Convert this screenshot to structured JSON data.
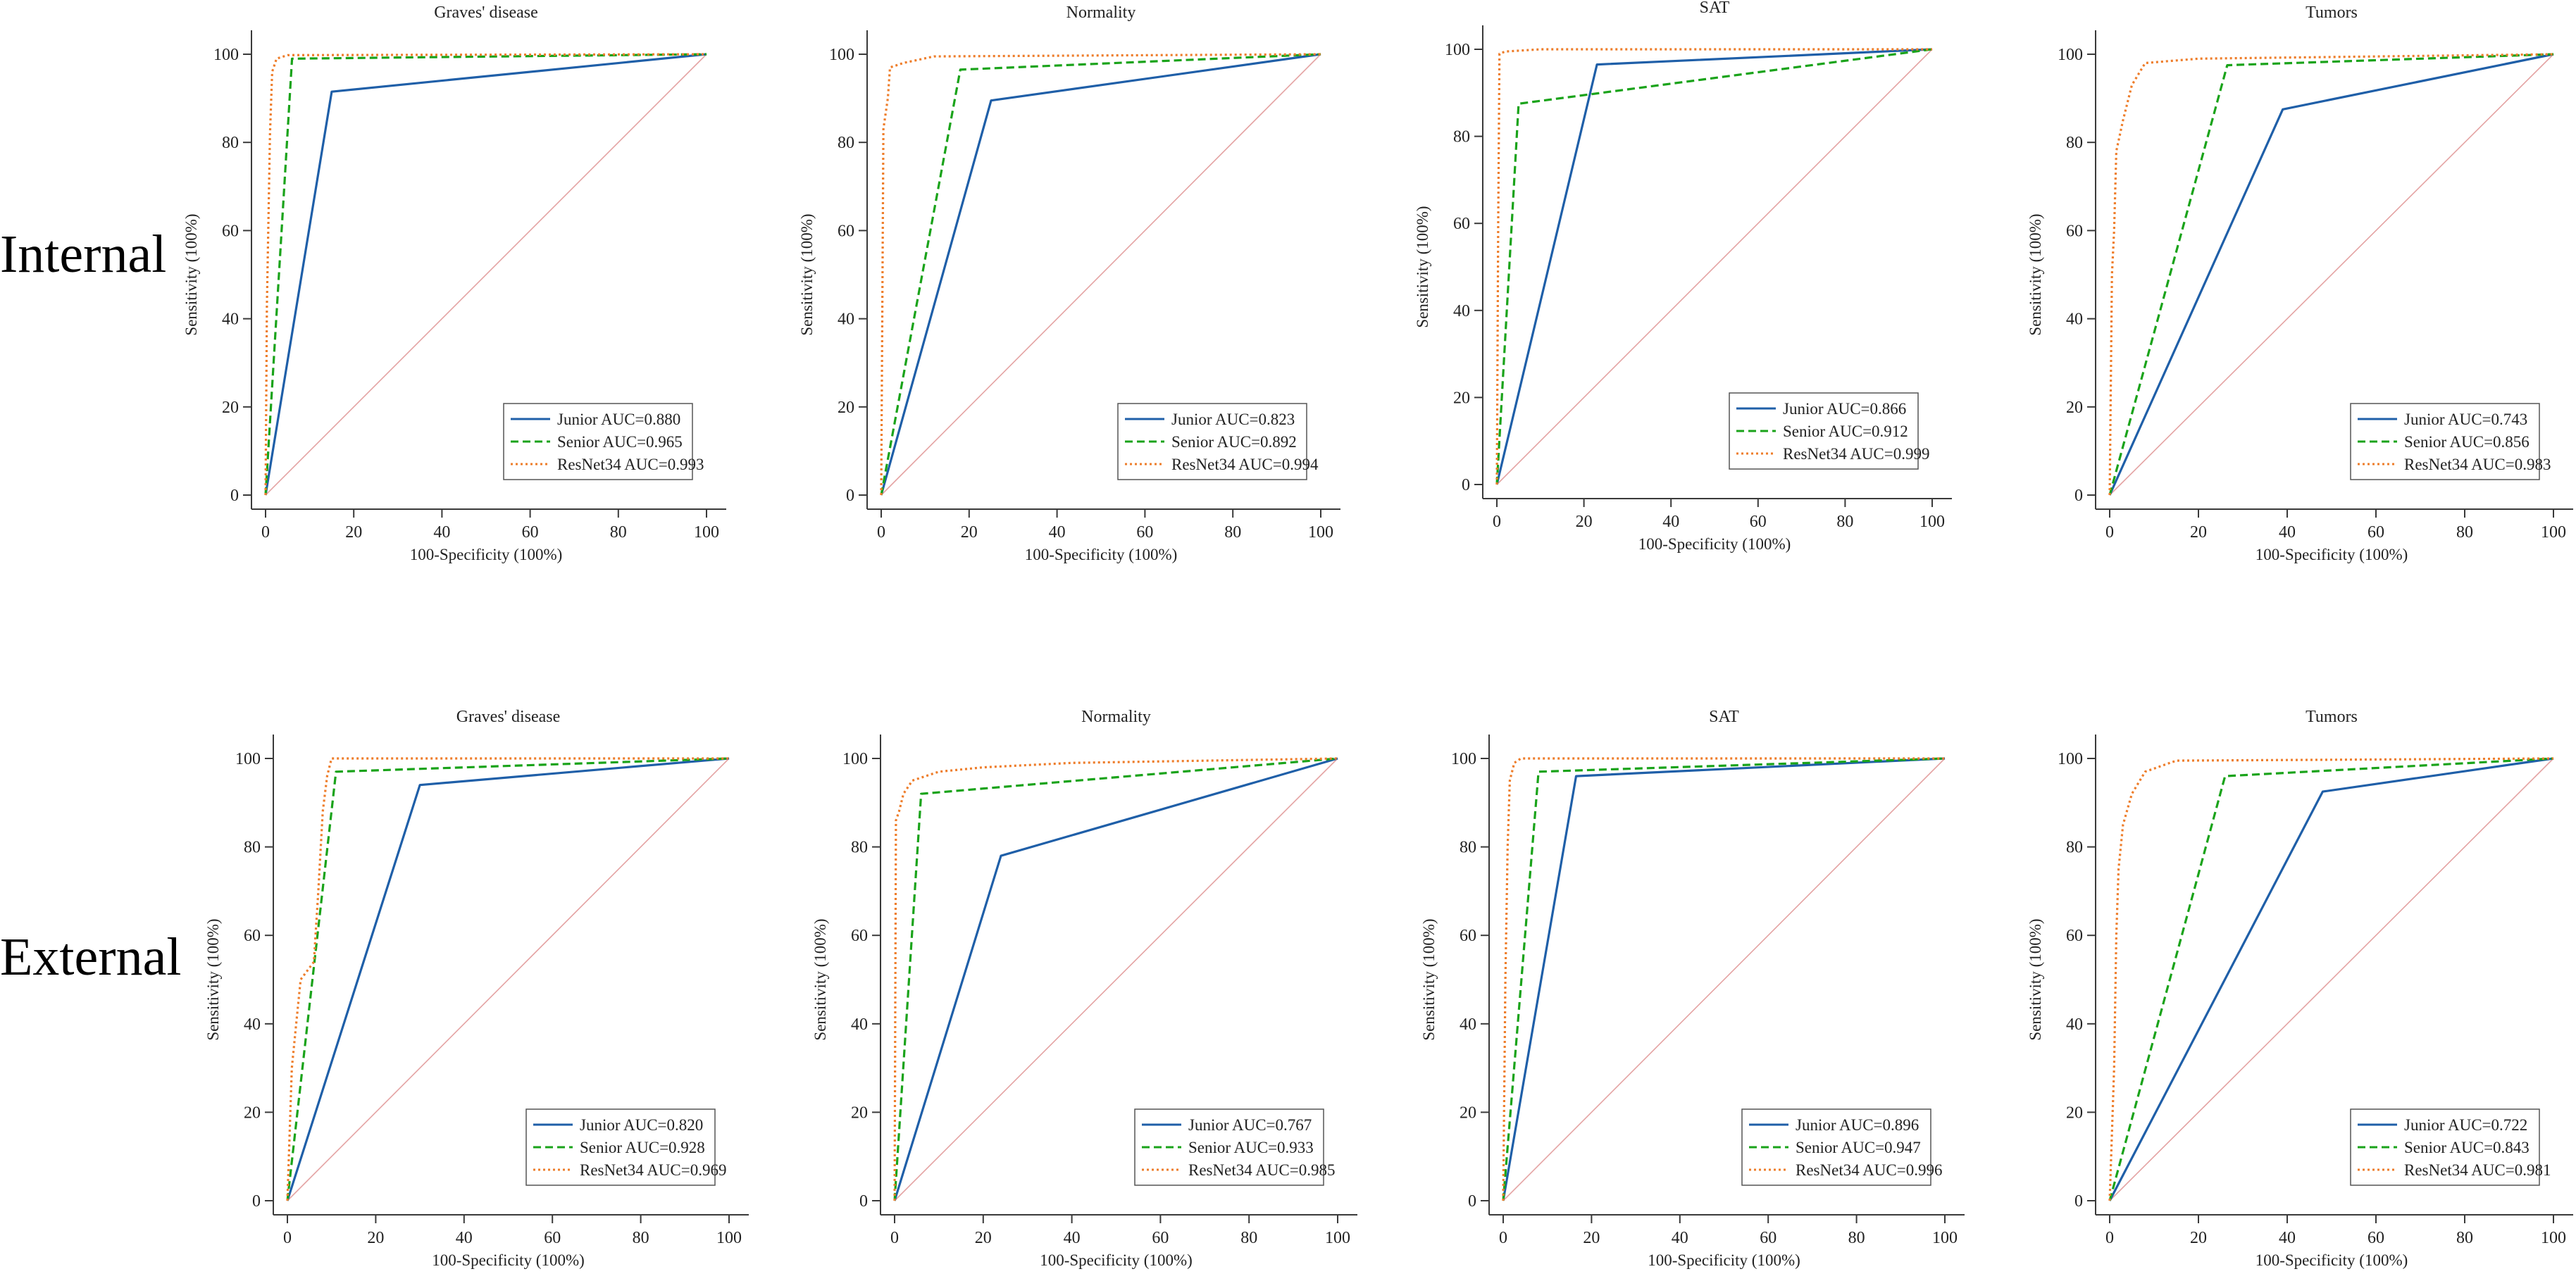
{
  "row_labels": {
    "internal": "Internal",
    "external": "External"
  },
  "colors": {
    "junior": "#1f5fa8",
    "senior": "#1aa31a",
    "resnet": "#ee7d2a",
    "reference": "#e4a3a3",
    "axis": "#3a3a3a"
  },
  "chart_data": [
    {
      "type": "line",
      "group": "Internal",
      "title": "Graves' disease",
      "xlabel": "100-Specificity (100%)",
      "ylabel": "Sensitivity (100%)",
      "xlim": [
        0,
        100
      ],
      "ylim": [
        0,
        100
      ],
      "xticks": [
        0,
        20,
        40,
        60,
        80,
        100
      ],
      "yticks": [
        0,
        20,
        40,
        60,
        80,
        100
      ],
      "legend_position": "bottom-right",
      "series": [
        {
          "name": "Junior AUC=0.880",
          "key": "junior",
          "points": [
            [
              0,
              0
            ],
            [
              15,
              91.5
            ],
            [
              100,
              100
            ]
          ]
        },
        {
          "name": "Senior AUC=0.965",
          "key": "senior",
          "points": [
            [
              0,
              0
            ],
            [
              6,
              99
            ],
            [
              100,
              100
            ]
          ]
        },
        {
          "name": "ResNet34 AUC=0.993",
          "key": "resnet",
          "points": [
            [
              0,
              0
            ],
            [
              0.3,
              43
            ],
            [
              1,
              82
            ],
            [
              1.5,
              96
            ],
            [
              2.5,
              99
            ],
            [
              5,
              99.8
            ],
            [
              100,
              100
            ]
          ]
        }
      ]
    },
    {
      "type": "line",
      "group": "Internal",
      "title": "Normality",
      "xlabel": "100-Specificity (100%)",
      "ylabel": "Sensitivity (100%)",
      "xlim": [
        0,
        100
      ],
      "ylim": [
        0,
        100
      ],
      "xticks": [
        0,
        20,
        40,
        60,
        80,
        100
      ],
      "yticks": [
        0,
        20,
        40,
        60,
        80,
        100
      ],
      "legend_position": "bottom-right",
      "series": [
        {
          "name": "Junior AUC=0.823",
          "key": "junior",
          "points": [
            [
              0,
              0
            ],
            [
              25,
              89.5
            ],
            [
              100,
              100
            ]
          ]
        },
        {
          "name": "Senior AUC=0.892",
          "key": "senior",
          "points": [
            [
              0,
              0
            ],
            [
              18,
              96.5
            ],
            [
              100,
              100
            ]
          ]
        },
        {
          "name": "ResNet34 AUC=0.994",
          "key": "resnet",
          "points": [
            [
              0,
              0
            ],
            [
              0.5,
              83
            ],
            [
              1.5,
              90
            ],
            [
              2,
              97
            ],
            [
              5,
              98
            ],
            [
              12,
              99.5
            ],
            [
              100,
              100
            ]
          ]
        }
      ]
    },
    {
      "type": "line",
      "group": "Internal",
      "title": "SAT",
      "xlabel": "100-Specificity (100%)",
      "ylabel": "Sensitivity (100%)",
      "xlim": [
        0,
        100
      ],
      "ylim": [
        0,
        100
      ],
      "xticks": [
        0,
        20,
        40,
        60,
        80,
        100
      ],
      "yticks": [
        0,
        20,
        40,
        60,
        80,
        100
      ],
      "legend_position": "bottom-right",
      "series": [
        {
          "name": "Junior AUC=0.866",
          "key": "junior",
          "points": [
            [
              0,
              0
            ],
            [
              23,
              96.5
            ],
            [
              100,
              100
            ]
          ]
        },
        {
          "name": "Senior AUC=0.912",
          "key": "senior",
          "points": [
            [
              0,
              0
            ],
            [
              5,
              87.5
            ],
            [
              100,
              100
            ]
          ]
        },
        {
          "name": "ResNet34 AUC=0.999",
          "key": "resnet",
          "points": [
            [
              0,
              0
            ],
            [
              0.3,
              60
            ],
            [
              0.6,
              99
            ],
            [
              2,
              99.5
            ],
            [
              10,
              100
            ],
            [
              100,
              100
            ]
          ]
        }
      ]
    },
    {
      "type": "line",
      "group": "Internal",
      "title": "Tumors",
      "xlabel": "100-Specificity (100%)",
      "ylabel": "Sensitivity (100%)",
      "xlim": [
        0,
        100
      ],
      "ylim": [
        0,
        100
      ],
      "xticks": [
        0,
        20,
        40,
        60,
        80,
        100
      ],
      "yticks": [
        0,
        20,
        40,
        60,
        80,
        100
      ],
      "legend_position": "bottom-right",
      "series": [
        {
          "name": "Junior AUC=0.743",
          "key": "junior",
          "points": [
            [
              0,
              0
            ],
            [
              39,
              87.5
            ],
            [
              100,
              100
            ]
          ]
        },
        {
          "name": "Senior AUC=0.856",
          "key": "senior",
          "points": [
            [
              0,
              0
            ],
            [
              26.5,
              97.5
            ],
            [
              100,
              100
            ]
          ]
        },
        {
          "name": "ResNet34 AUC=0.983",
          "key": "resnet",
          "points": [
            [
              0,
              0
            ],
            [
              0.5,
              50
            ],
            [
              1,
              60
            ],
            [
              1.5,
              78
            ],
            [
              3,
              85
            ],
            [
              5,
              93
            ],
            [
              8,
              98
            ],
            [
              20,
              99
            ],
            [
              100,
              100
            ]
          ]
        }
      ]
    },
    {
      "type": "line",
      "group": "External",
      "title": "Graves' disease",
      "xlabel": "100-Specificity (100%)",
      "ylabel": "Sensitivity (100%)",
      "xlim": [
        0,
        100
      ],
      "ylim": [
        0,
        100
      ],
      "xticks": [
        0,
        20,
        40,
        60,
        80,
        100
      ],
      "yticks": [
        0,
        20,
        40,
        60,
        80,
        100
      ],
      "legend_position": "bottom-right",
      "series": [
        {
          "name": "Junior AUC=0.820",
          "key": "junior",
          "points": [
            [
              0,
              0
            ],
            [
              30,
              94
            ],
            [
              100,
              100
            ]
          ]
        },
        {
          "name": "Senior AUC=0.928",
          "key": "senior",
          "points": [
            [
              0,
              0
            ],
            [
              11,
              97
            ],
            [
              100,
              100
            ]
          ]
        },
        {
          "name": "ResNet34 AUC=0.969",
          "key": "resnet",
          "points": [
            [
              0,
              0
            ],
            [
              1,
              30
            ],
            [
              2,
              40
            ],
            [
              3,
              50
            ],
            [
              6,
              54
            ],
            [
              7,
              70
            ],
            [
              8,
              88
            ],
            [
              9,
              96
            ],
            [
              10,
              100
            ],
            [
              100,
              100
            ]
          ]
        }
      ]
    },
    {
      "type": "line",
      "group": "External",
      "title": "Normality",
      "xlabel": "100-Specificity (100%)",
      "ylabel": "Sensitivity (100%)",
      "xlim": [
        0,
        100
      ],
      "ylim": [
        0,
        100
      ],
      "xticks": [
        0,
        20,
        40,
        60,
        80,
        100
      ],
      "yticks": [
        0,
        20,
        40,
        60,
        80,
        100
      ],
      "legend_position": "bottom-right",
      "series": [
        {
          "name": "Junior AUC=0.767",
          "key": "junior",
          "points": [
            [
              0,
              0
            ],
            [
              24,
              78
            ],
            [
              100,
              100
            ]
          ]
        },
        {
          "name": "Senior AUC=0.933",
          "key": "senior",
          "points": [
            [
              0,
              0
            ],
            [
              6,
              92
            ],
            [
              100,
              100
            ]
          ]
        },
        {
          "name": "ResNet34 AUC=0.985",
          "key": "resnet",
          "points": [
            [
              0,
              0
            ],
            [
              0.3,
              86
            ],
            [
              1,
              88
            ],
            [
              2,
              92
            ],
            [
              4,
              95
            ],
            [
              10,
              97
            ],
            [
              20,
              98
            ],
            [
              40,
              99
            ],
            [
              100,
              100
            ]
          ]
        }
      ]
    },
    {
      "type": "line",
      "group": "External",
      "title": "SAT",
      "xlabel": "100-Specificity (100%)",
      "ylabel": "Sensitivity (100%)",
      "xlim": [
        0,
        100
      ],
      "ylim": [
        0,
        100
      ],
      "xticks": [
        0,
        20,
        40,
        60,
        80,
        100
      ],
      "yticks": [
        0,
        20,
        40,
        60,
        80,
        100
      ],
      "legend_position": "bottom-right",
      "series": [
        {
          "name": "Junior AUC=0.896",
          "key": "junior",
          "points": [
            [
              0,
              0
            ],
            [
              16.5,
              96
            ],
            [
              100,
              100
            ]
          ]
        },
        {
          "name": "Senior AUC=0.947",
          "key": "senior",
          "points": [
            [
              0,
              0
            ],
            [
              8,
              97
            ],
            [
              100,
              100
            ]
          ]
        },
        {
          "name": "ResNet34 AUC=0.996",
          "key": "resnet",
          "points": [
            [
              0,
              0
            ],
            [
              0.5,
              50
            ],
            [
              1,
              80
            ],
            [
              1.5,
              95
            ],
            [
              2.5,
              99
            ],
            [
              4,
              100
            ],
            [
              100,
              100
            ]
          ]
        }
      ]
    },
    {
      "type": "line",
      "group": "External",
      "title": "Tumors",
      "xlabel": "100-Specificity (100%)",
      "ylabel": "Sensitivity (100%)",
      "xlim": [
        0,
        100
      ],
      "ylim": [
        0,
        100
      ],
      "xticks": [
        0,
        20,
        40,
        60,
        80,
        100
      ],
      "yticks": [
        0,
        20,
        40,
        60,
        80,
        100
      ],
      "legend_position": "bottom-right",
      "series": [
        {
          "name": "Junior AUC=0.722",
          "key": "junior",
          "points": [
            [
              0,
              0
            ],
            [
              48,
              92.5
            ],
            [
              100,
              100
            ]
          ]
        },
        {
          "name": "Senior AUC=0.843",
          "key": "senior",
          "points": [
            [
              0,
              0
            ],
            [
              26,
              96
            ],
            [
              100,
              100
            ]
          ]
        },
        {
          "name": "ResNet34 AUC=0.981",
          "key": "resnet",
          "points": [
            [
              0,
              0
            ],
            [
              1,
              30
            ],
            [
              1.5,
              60
            ],
            [
              2,
              75
            ],
            [
              3,
              85
            ],
            [
              5,
              92
            ],
            [
              8,
              97
            ],
            [
              15,
              99.5
            ],
            [
              100,
              100
            ]
          ]
        }
      ]
    }
  ]
}
